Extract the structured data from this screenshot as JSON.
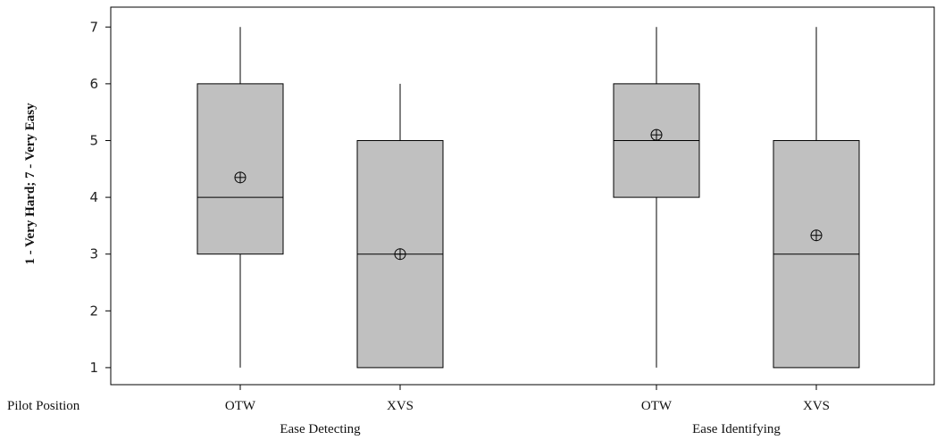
{
  "chart_data": {
    "type": "boxplot",
    "ylabel": "1 - Very Hard; 7 - Very Easy",
    "xlabel": "",
    "x_row_label": "Pilot Position",
    "ylim": [
      0.7,
      7.35
    ],
    "yticks": [
      1,
      2,
      3,
      4,
      5,
      6,
      7
    ],
    "grid": false,
    "groups": [
      {
        "label": "Ease Detecting",
        "boxes": [
          {
            "category": "OTW",
            "whisker_low": 1,
            "q1": 3,
            "median": 4,
            "q3": 6,
            "whisker_high": 7,
            "mean": 4.35
          },
          {
            "category": "XVS",
            "whisker_low": 1,
            "q1": 1,
            "median": 3,
            "q3": 5,
            "whisker_high": 6,
            "mean": 3.0
          }
        ]
      },
      {
        "label": "Ease Identifying",
        "boxes": [
          {
            "category": "OTW",
            "whisker_low": 1,
            "q1": 4,
            "median": 5,
            "q3": 6,
            "whisker_high": 7,
            "mean": 5.1
          },
          {
            "category": "XVS",
            "whisker_low": 1,
            "q1": 1,
            "median": 3,
            "q3": 5,
            "whisker_high": 7,
            "mean": 3.33
          }
        ]
      }
    ],
    "colors": {
      "box_fill": "#c0c0c0",
      "stroke": "#000000"
    }
  }
}
